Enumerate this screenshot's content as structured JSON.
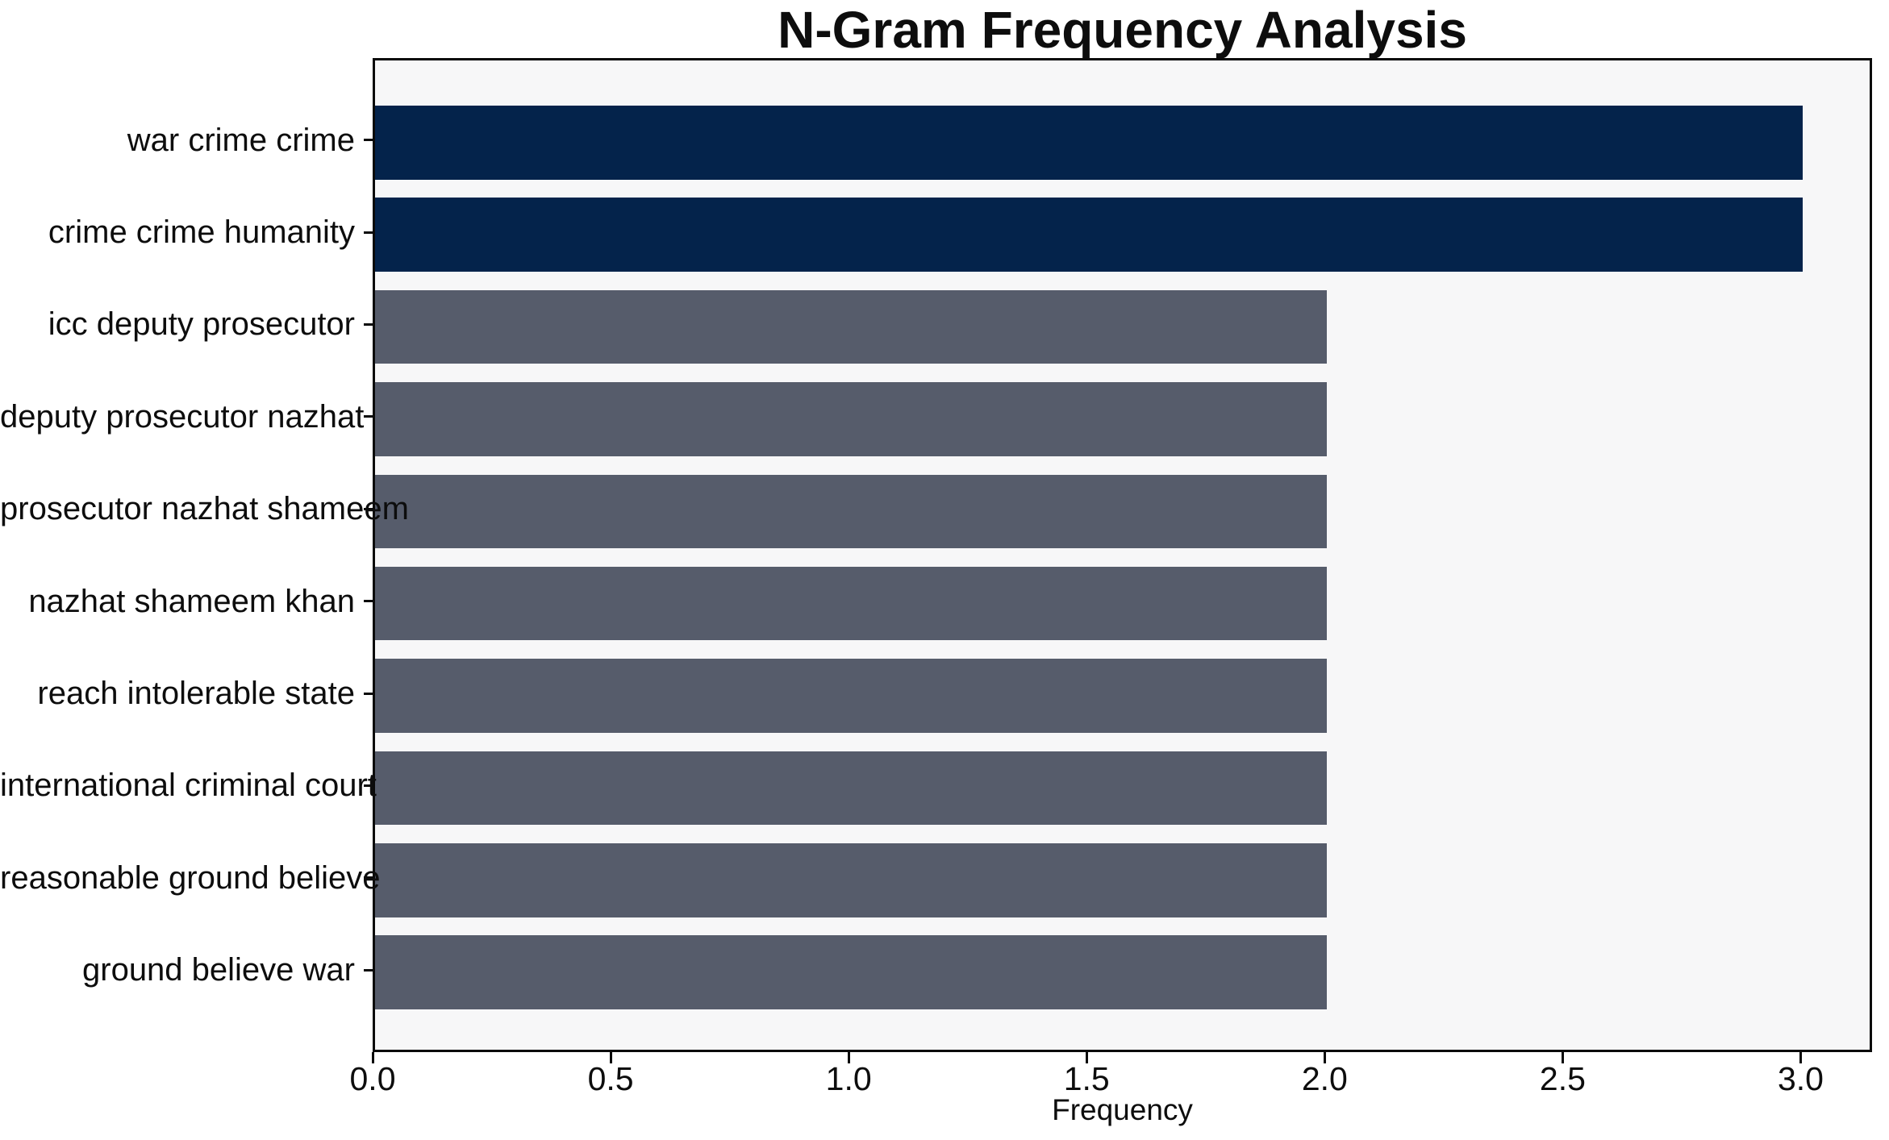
{
  "chart_data": {
    "type": "bar",
    "orientation": "horizontal",
    "title": "N-Gram Frequency Analysis",
    "xlabel": "Frequency",
    "ylabel": "",
    "categories": [
      "war crime crime",
      "crime crime humanity",
      "icc deputy prosecutor",
      "deputy prosecutor nazhat",
      "prosecutor nazhat shameem",
      "nazhat shameem khan",
      "reach intolerable state",
      "international criminal court",
      "reasonable ground believe",
      "ground believe war"
    ],
    "values": [
      3,
      3,
      2,
      2,
      2,
      2,
      2,
      2,
      2,
      2
    ],
    "bar_colors": [
      "#04234b",
      "#04234b",
      "#565c6b",
      "#565c6b",
      "#565c6b",
      "#565c6b",
      "#565c6b",
      "#565c6b",
      "#565c6b",
      "#565c6b"
    ],
    "xlim": [
      0,
      3.15
    ],
    "xticks": [
      0.0,
      0.5,
      1.0,
      1.5,
      2.0,
      2.5,
      3.0
    ],
    "xtick_labels": [
      "0.0",
      "0.5",
      "1.0",
      "1.5",
      "2.0",
      "2.5",
      "3.0"
    ],
    "grid": false,
    "legend": null,
    "colors": {
      "bar_high": "#04234b",
      "bar_low": "#565c6b",
      "plot_background": "#f7f7f8",
      "figure_background": "#ffffff",
      "spine": "#0a0a0a",
      "text": "#0d0d0d"
    }
  }
}
